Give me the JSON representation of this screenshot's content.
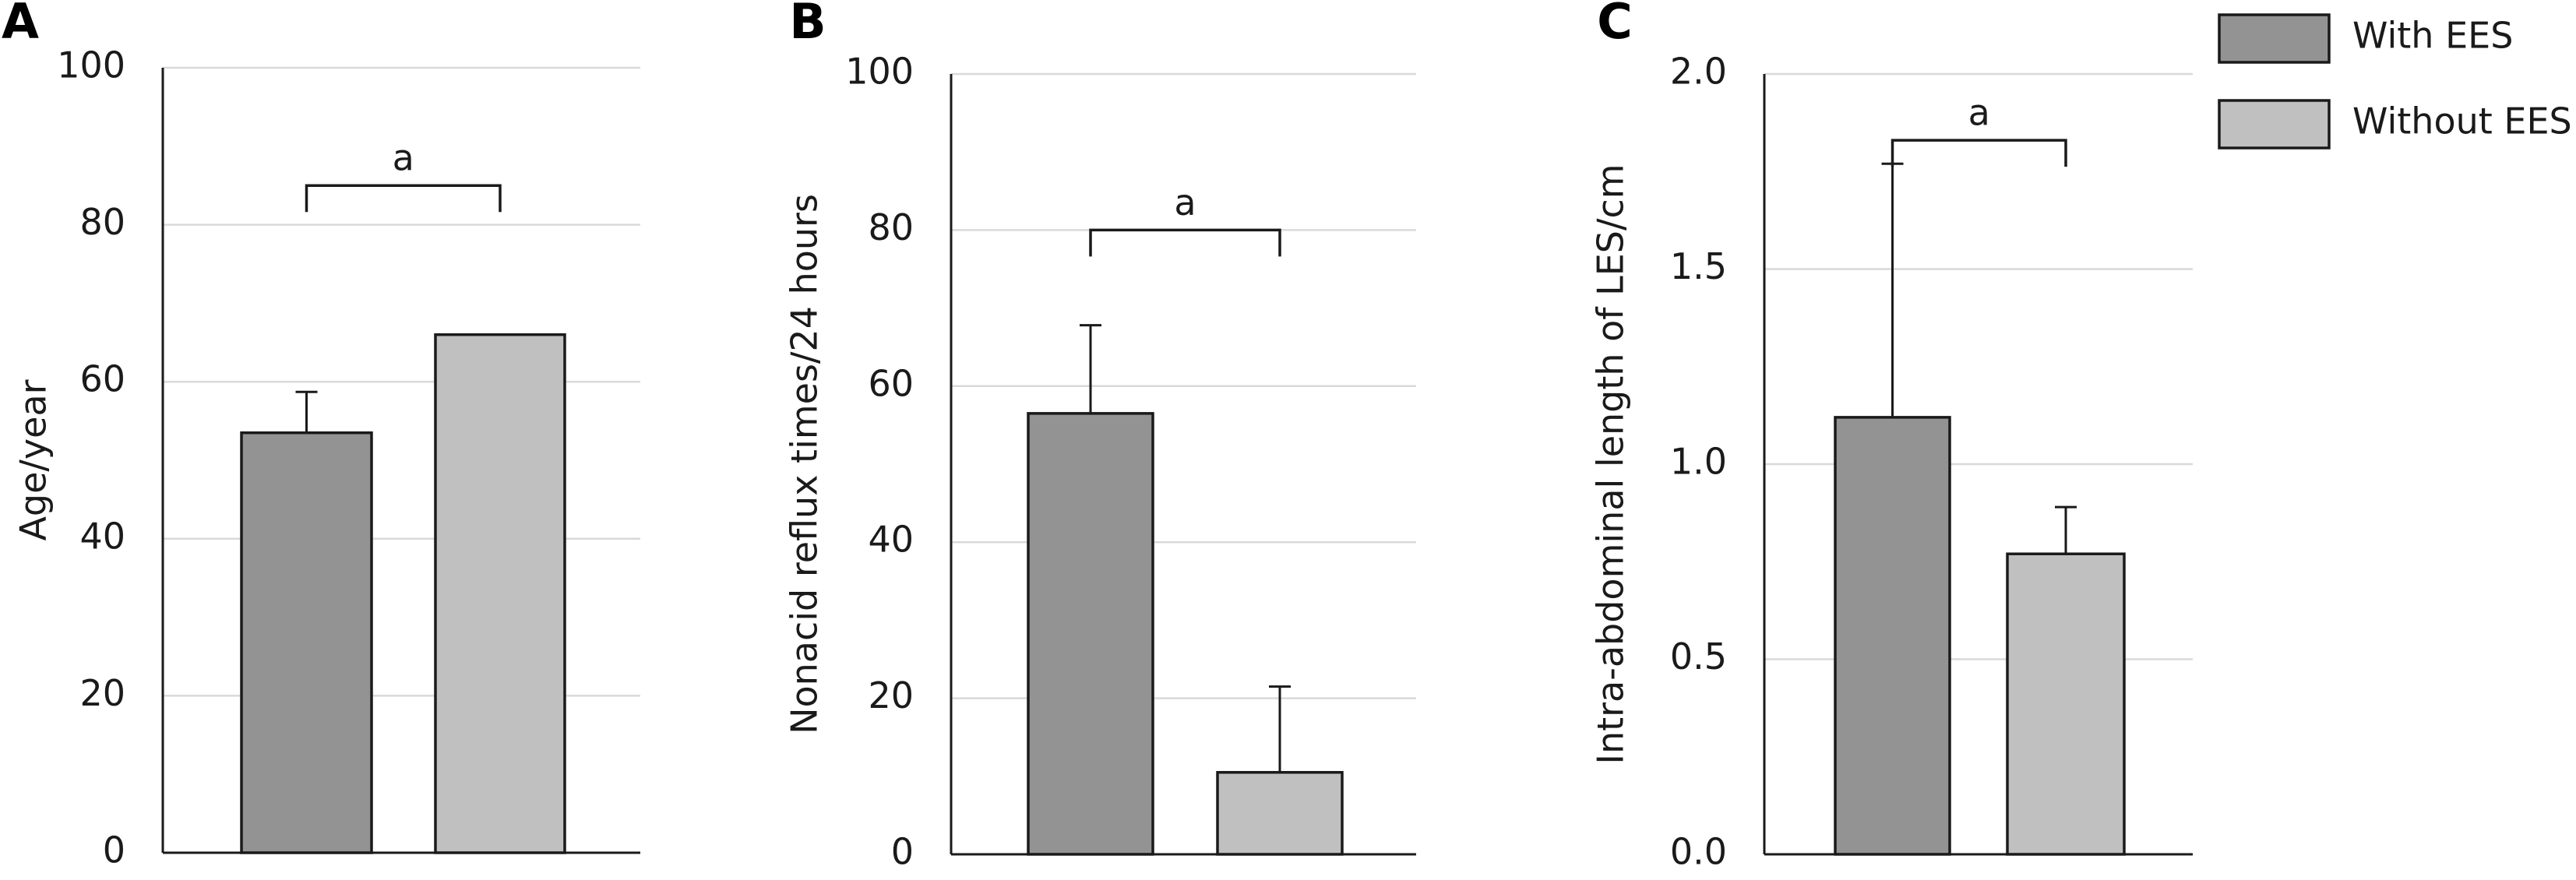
{
  "chart_data": [
    {
      "type": "bar",
      "panel": "A",
      "y_label": "Age/year",
      "series": [
        {
          "name": "With EES",
          "color": "#939393",
          "values": [
            53.5
          ],
          "errors": [
            5.2
          ]
        },
        {
          "name": "Without EES",
          "color": "#c0c0c0",
          "values": [
            66
          ],
          "errors": [
            null
          ]
        }
      ],
      "ylim": [
        0,
        100
      ],
      "yticks": [
        0,
        20,
        40,
        60,
        80,
        100
      ],
      "grid": true,
      "annotation": {
        "text": "a",
        "y": 85
      }
    },
    {
      "type": "bar",
      "panel": "B",
      "y_label": "Nonacid reflux times/24 hours",
      "series": [
        {
          "name": "With EES",
          "color": "#939393",
          "values": [
            56.5
          ],
          "errors": [
            11.3
          ]
        },
        {
          "name": "Without EES",
          "color": "#c0c0c0",
          "values": [
            10.5
          ],
          "errors": [
            11
          ]
        }
      ],
      "ylim": [
        0,
        100
      ],
      "yticks": [
        0,
        20,
        40,
        60,
        80,
        100
      ],
      "grid": true,
      "annotation": {
        "text": "a",
        "y": 80
      }
    },
    {
      "type": "bar",
      "panel": "C",
      "y_label": "Intra-abdominal length of LES/cm",
      "series": [
        {
          "name": "With EES",
          "color": "#939393",
          "values": [
            1.12
          ],
          "errors": [
            0.65
          ]
        },
        {
          "name": "Without EES",
          "color": "#c0c0c0",
          "values": [
            0.77
          ],
          "errors": [
            0.12
          ]
        }
      ],
      "ylim": [
        0,
        2
      ],
      "yticks": [
        {
          "value": 0,
          "label": "0.0"
        },
        {
          "value": 0.5,
          "label": "0.5"
        },
        {
          "value": 1,
          "label": "1.0"
        },
        {
          "value": 1.5,
          "label": "1.5"
        },
        {
          "value": 2,
          "label": "2.0"
        }
      ],
      "grid": true,
      "annotation": {
        "text": "a",
        "y": 1.83
      }
    }
  ]
}
